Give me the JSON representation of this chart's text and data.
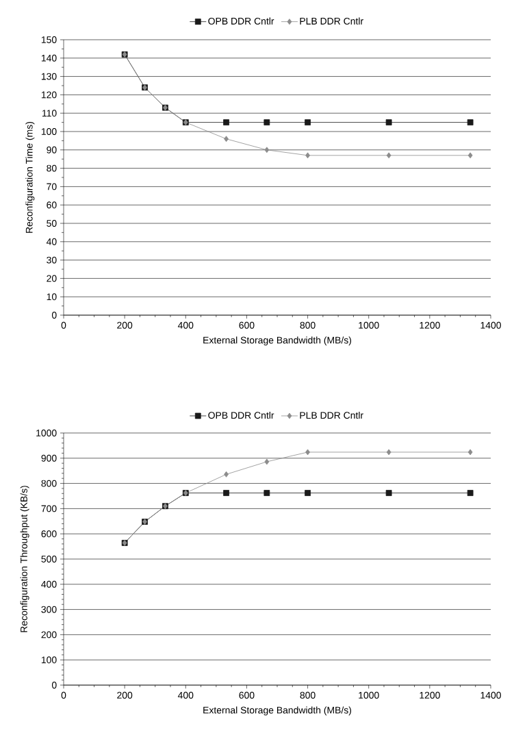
{
  "chart_data": [
    {
      "type": "line",
      "xlabel": "External Storage Bandwidth (MB/s)",
      "ylabel": "Reconfiguration Time (ms)",
      "x": [
        200,
        266,
        333,
        400,
        533,
        666,
        800,
        1066,
        1333
      ],
      "xlim": [
        0,
        1400
      ],
      "xticks": [
        0,
        200,
        400,
        600,
        800,
        1000,
        1200,
        1400
      ],
      "ylim": [
        0,
        150
      ],
      "yticks": [
        0,
        10,
        20,
        30,
        40,
        50,
        60,
        70,
        80,
        90,
        100,
        110,
        120,
        130,
        140,
        150
      ],
      "grid": "y",
      "legend": "top",
      "series": [
        {
          "name": "OPB DDR Cntlr",
          "color": "#1a1a1a",
          "marker": "square",
          "values": [
            142,
            124,
            113,
            105,
            105,
            105,
            105,
            105,
            105
          ]
        },
        {
          "name": "PLB DDR Cntlr",
          "color": "#8c8c8c",
          "marker": "diamond",
          "values": [
            142,
            124,
            113,
            105,
            96,
            90,
            87,
            87,
            87
          ]
        }
      ]
    },
    {
      "type": "line",
      "xlabel": "External Storage Bandwidth (MB/s)",
      "ylabel": "Reconfiguration Throughput (KB/s)",
      "x": [
        200,
        266,
        333,
        400,
        533,
        666,
        800,
        1066,
        1333
      ],
      "xlim": [
        0,
        1400
      ],
      "xticks": [
        0,
        200,
        400,
        600,
        800,
        1000,
        1200,
        1400
      ],
      "ylim": [
        0,
        1000
      ],
      "yticks": [
        0,
        100,
        200,
        300,
        400,
        500,
        600,
        700,
        800,
        900,
        1000
      ],
      "grid": "y",
      "legend": "top",
      "series": [
        {
          "name": "OPB DDR Cntlr",
          "color": "#1a1a1a",
          "marker": "square",
          "values": [
            564,
            648,
            710,
            762,
            762,
            762,
            762,
            762,
            762
          ]
        },
        {
          "name": "PLB DDR Cntlr",
          "color": "#8c8c8c",
          "marker": "diamond",
          "values": [
            564,
            648,
            710,
            762,
            836,
            886,
            924,
            924,
            924
          ]
        }
      ]
    }
  ]
}
